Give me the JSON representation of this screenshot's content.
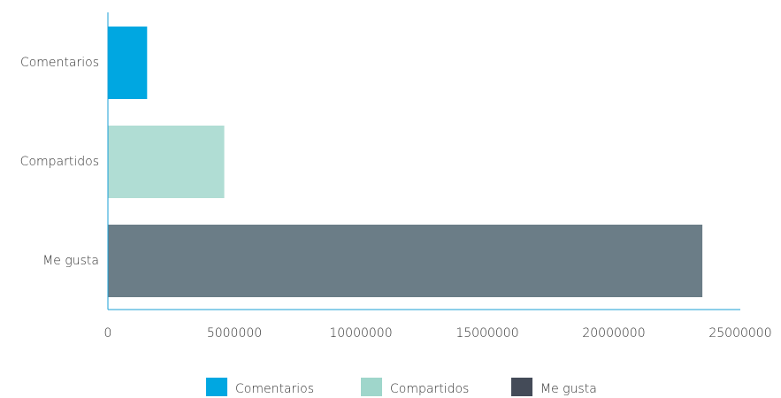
{
  "chart_data": {
    "type": "bar",
    "horizontal": true,
    "categories": [
      "Comentarios",
      "Compartidos",
      "Me gusta"
    ],
    "values": [
      1550000,
      4600000,
      23500000
    ],
    "colors": [
      "#00a7e1",
      "#b0ddd4",
      "#6b7d87"
    ],
    "legend_colors": [
      "#00a7e1",
      "#9fd6cb",
      "#444b58"
    ],
    "xlim": [
      0,
      25000000
    ],
    "xticks": [
      0,
      5000000,
      10000000,
      15000000,
      20000000,
      25000000
    ],
    "legend": "bottom",
    "grid": false
  }
}
